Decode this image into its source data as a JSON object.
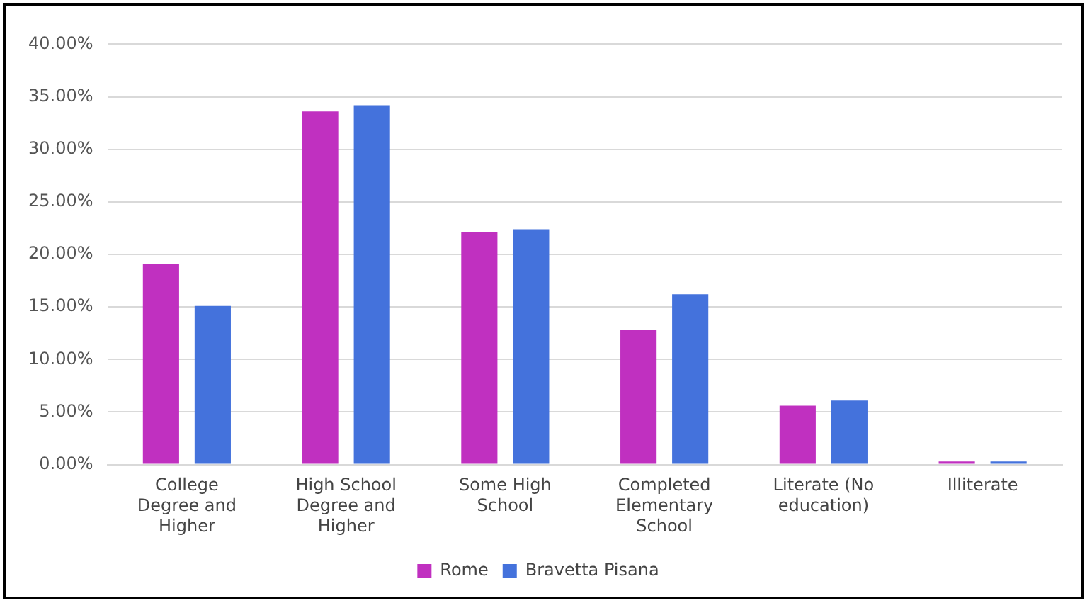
{
  "chart_data": {
    "type": "bar",
    "categories": [
      "College Degree and Higher",
      "High School Degree and Higher",
      "Some High School",
      "Completed Elementary School",
      "Literate (No education)",
      "Illiterate"
    ],
    "series": [
      {
        "name": "Rome",
        "color": "#c030c0",
        "values": [
          19.1,
          33.6,
          22.1,
          12.8,
          5.6,
          0.3
        ]
      },
      {
        "name": "Bravetta Pisana",
        "color": "#4472dc",
        "values": [
          15.1,
          34.2,
          22.4,
          16.2,
          6.1,
          0.3
        ]
      }
    ],
    "ylim": [
      0,
      40
    ],
    "yticks": [
      {
        "value": 0,
        "label": "0.00%"
      },
      {
        "value": 5,
        "label": "5.00%"
      },
      {
        "value": 10,
        "label": "10.00%"
      },
      {
        "value": 15,
        "label": "15.00%"
      },
      {
        "value": 20,
        "label": "20.00%"
      },
      {
        "value": 25,
        "label": "25.00%"
      },
      {
        "value": 30,
        "label": "30.00%"
      },
      {
        "value": 35,
        "label": "35.00%"
      },
      {
        "value": 40,
        "label": "40.00%"
      }
    ],
    "grid": "y",
    "legend": "bottom"
  }
}
